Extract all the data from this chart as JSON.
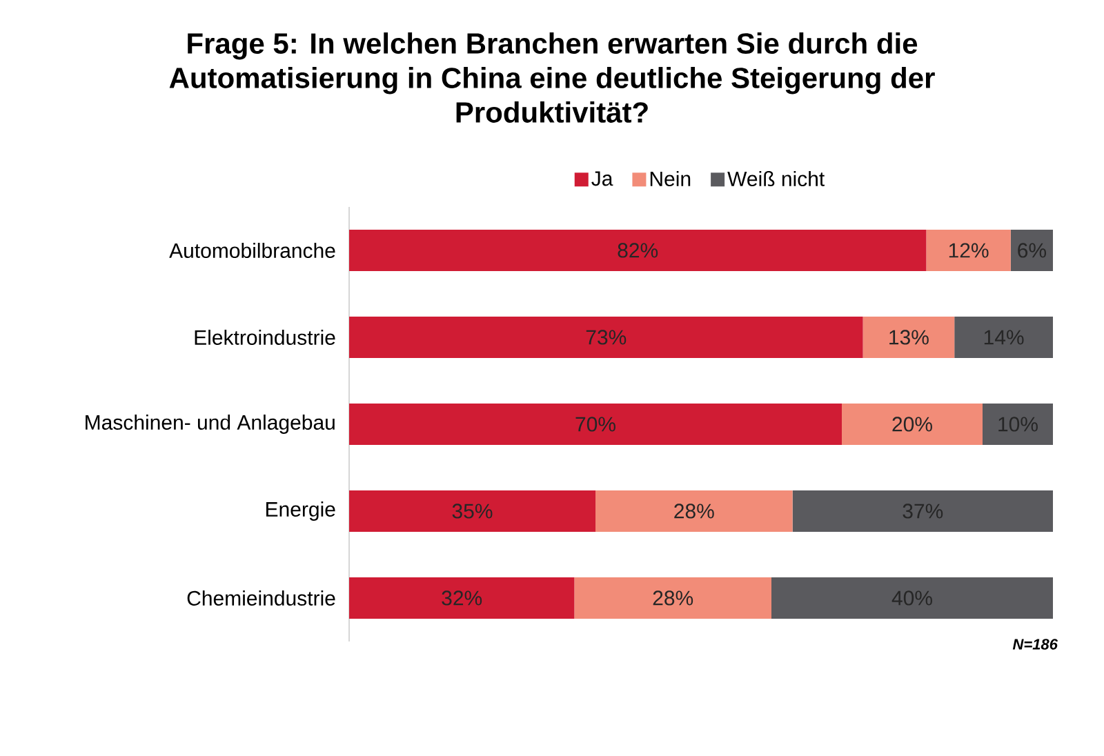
{
  "chart_data": {
    "type": "bar",
    "orientation": "horizontal",
    "stacked": true,
    "title": "Frage 5: In welchen Branchen erwarten Sie durch die Automatisierung in China eine deutliche Steigerung der Produktivität?",
    "categories": [
      "Automobilbranche",
      "Elektroindustrie",
      "Maschinen- und Anlagebau",
      "Energie",
      "Chemieindustrie"
    ],
    "series": [
      {
        "name": "Ja",
        "color": "#d01c34",
        "values": [
          82,
          73,
          70,
          35,
          32
        ],
        "value_labels": [
          "82%",
          "73%",
          "70%",
          "35%",
          "32%"
        ]
      },
      {
        "name": "Nein",
        "color": "#f28c78",
        "values": [
          12,
          13,
          20,
          28,
          28
        ],
        "value_labels": [
          "12%",
          "13%",
          "20%",
          "28%",
          "28%"
        ]
      },
      {
        "name": "Weiß nicht",
        "color": "#5a5a5e",
        "values": [
          6,
          14,
          10,
          37,
          40
        ],
        "value_labels": [
          "6%",
          "14%",
          "10%",
          "37%",
          "40%"
        ]
      }
    ],
    "xlim": [
      0,
      100
    ],
    "tick_labels": "y",
    "legend": "top",
    "annotations": [
      "N=186"
    ]
  }
}
